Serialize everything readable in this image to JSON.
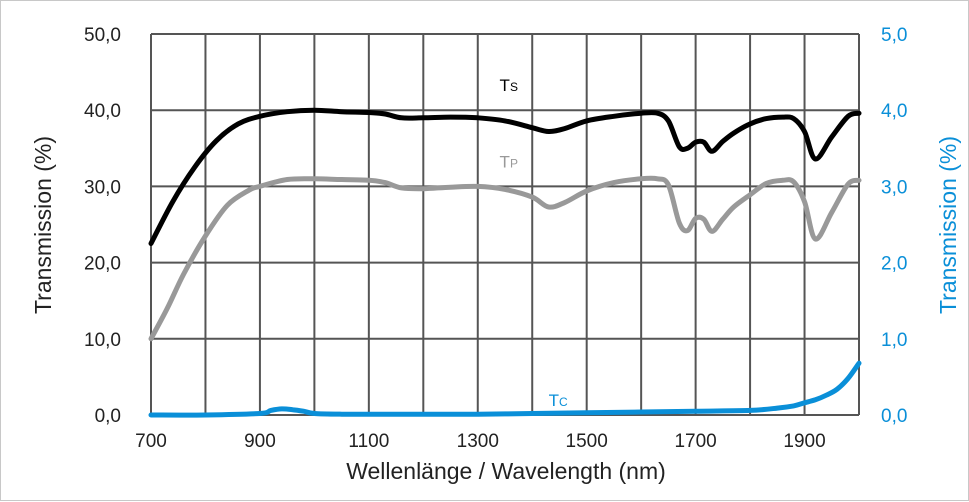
{
  "chart_data": {
    "type": "line",
    "xlabel": "Wellenlänge / Wavelength (nm)",
    "ylabel": "Transmission (%)",
    "y2label": "Transmission (%)",
    "xlim": [
      700,
      2000
    ],
    "ylim": [
      0,
      50
    ],
    "y2lim": [
      0,
      5
    ],
    "x_ticks": [
      700,
      900,
      1100,
      1300,
      1500,
      1700,
      1900
    ],
    "x_gridlines_step": 100,
    "y_ticks": [
      "0,0",
      "10,0",
      "20,0",
      "30,0",
      "40,0",
      "50,0"
    ],
    "y2_ticks": [
      "0,0",
      "1,0",
      "2,0",
      "3,0",
      "4,0",
      "5,0"
    ],
    "y_tick_values": [
      0,
      10,
      20,
      30,
      40,
      50
    ],
    "y2_tick_values": [
      0,
      1,
      2,
      3,
      4,
      5
    ],
    "grid": true,
    "colors": {
      "left_axis": "#000000",
      "right_axis": "#0a8fd8",
      "grid": "#555555"
    },
    "series": [
      {
        "name": "Ts",
        "label_main": "T",
        "label_sub": "S",
        "color": "#000000",
        "axis": "left",
        "label_at": [
          1340,
          42.5
        ],
        "x": [
          700,
          740,
          780,
          820,
          860,
          900,
          950,
          1000,
          1050,
          1100,
          1130,
          1160,
          1200,
          1250,
          1300,
          1350,
          1400,
          1430,
          1460,
          1500,
          1550,
          1600,
          1630,
          1650,
          1670,
          1685,
          1700,
          1715,
          1730,
          1750,
          1770,
          1800,
          1830,
          1860,
          1880,
          1900,
          1920,
          1950,
          1980,
          2000
        ],
        "values": [
          22.5,
          28.0,
          32.5,
          36.0,
          38.2,
          39.2,
          39.8,
          40.0,
          39.8,
          39.7,
          39.5,
          39.0,
          39.0,
          39.1,
          39.0,
          38.6,
          37.7,
          37.2,
          37.6,
          38.6,
          39.2,
          39.6,
          39.6,
          38.6,
          35.2,
          35.0,
          35.8,
          35.8,
          34.6,
          35.9,
          37.0,
          38.2,
          38.9,
          39.1,
          38.9,
          37.2,
          33.6,
          36.5,
          39.2,
          39.6
        ]
      },
      {
        "name": "Tp",
        "label_main": "T",
        "label_sub": "P",
        "color": "#999999",
        "axis": "left",
        "label_at": [
          1340,
          32.5
        ],
        "x": [
          700,
          730,
          760,
          800,
          840,
          880,
          900,
          950,
          1000,
          1050,
          1100,
          1130,
          1160,
          1200,
          1250,
          1300,
          1350,
          1400,
          1430,
          1460,
          1500,
          1550,
          1600,
          1630,
          1650,
          1670,
          1685,
          1700,
          1715,
          1730,
          1750,
          1770,
          1800,
          1830,
          1860,
          1880,
          1900,
          1920,
          1950,
          1980,
          2000
        ],
        "values": [
          10.0,
          14.0,
          18.5,
          23.5,
          27.5,
          29.5,
          30.0,
          30.9,
          31.0,
          30.9,
          30.8,
          30.5,
          29.8,
          29.7,
          29.9,
          30.0,
          29.6,
          28.6,
          27.3,
          27.9,
          29.4,
          30.5,
          31.0,
          31.0,
          30.2,
          25.2,
          24.2,
          25.8,
          25.7,
          24.1,
          25.7,
          27.3,
          28.9,
          30.4,
          30.8,
          30.6,
          28.0,
          23.1,
          26.6,
          30.3,
          30.8
        ]
      },
      {
        "name": "Tc",
        "label_main": "T",
        "label_sub": "C",
        "color": "#0a8fd8",
        "axis": "right",
        "label_at": [
          1430,
          0.12
        ],
        "x": [
          700,
          800,
          900,
          920,
          940,
          960,
          980,
          1000,
          1050,
          1100,
          1200,
          1300,
          1400,
          1500,
          1600,
          1700,
          1800,
          1850,
          1880,
          1900,
          1920,
          1940,
          1960,
          1980,
          2000
        ],
        "values": [
          0.0,
          0.0,
          0.02,
          0.06,
          0.08,
          0.07,
          0.05,
          0.02,
          0.01,
          0.01,
          0.01,
          0.01,
          0.02,
          0.03,
          0.04,
          0.05,
          0.06,
          0.09,
          0.12,
          0.16,
          0.2,
          0.26,
          0.34,
          0.48,
          0.68
        ]
      }
    ]
  }
}
